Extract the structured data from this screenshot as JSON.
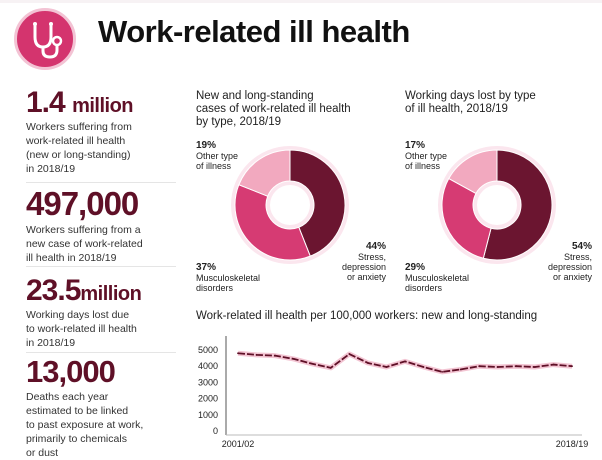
{
  "header": {
    "title": "Work-related ill health",
    "icon": "stethoscope-icon",
    "accent": "#d4346e"
  },
  "stats": [
    {
      "value": "1.4",
      "unit": "million",
      "desc": [
        "Workers suffering from",
        "work-related ill health",
        "(new or long-standing)",
        "in 2018/19"
      ]
    },
    {
      "value": "497,000",
      "unit": "",
      "desc": [
        "Workers suffering from a",
        "new case of work-related",
        "ill health in 2018/19"
      ]
    },
    {
      "value": "23.5",
      "unit": "million",
      "desc": [
        "Working days lost due",
        "to work-related ill health",
        "in 2018/19"
      ]
    },
    {
      "value": "13,000",
      "unit": "",
      "desc": [
        "Deaths each year",
        "estimated to be linked",
        "to past exposure at work,",
        "primarily to chemicals",
        "or dust"
      ]
    }
  ],
  "chart_data": [
    {
      "type": "pie",
      "title": [
        "New and long-standing",
        "cases of work-related ill health",
        "by type, 2018/19"
      ],
      "slices": [
        {
          "label": [
            "Stress,",
            "depression",
            "or anxiety"
          ],
          "value": 44,
          "pct": "44%",
          "color": "#6b1530"
        },
        {
          "label": [
            "Musculoskeletal",
            "disorders"
          ],
          "value": 37,
          "pct": "37%",
          "color": "#d63b73"
        },
        {
          "label": [
            "Other type",
            "of illness"
          ],
          "value": 19,
          "pct": "19%",
          "color": "#f2a9bf"
        }
      ]
    },
    {
      "type": "pie",
      "title": [
        "Working days lost by type",
        "of ill health, 2018/19"
      ],
      "slices": [
        {
          "label": [
            "Stress,",
            "depression",
            "or anxiety"
          ],
          "value": 54,
          "pct": "54%",
          "color": "#6b1530"
        },
        {
          "label": [
            "Musculoskeletal",
            "disorders"
          ],
          "value": 29,
          "pct": "29%",
          "color": "#d63b73"
        },
        {
          "label": [
            "Other type",
            "of illness"
          ],
          "value": 17,
          "pct": "17%",
          "color": "#f2a9bf"
        }
      ]
    },
    {
      "type": "line",
      "title": "Work-related ill health per 100,000 workers: new and long-standing",
      "x_labels": [
        "2001/02",
        "2018/19"
      ],
      "yticks": [
        "5000",
        "4000",
        "3000",
        "2000",
        "1000",
        "0"
      ],
      "ylim": [
        0,
        5000
      ],
      "series": [
        {
          "values": [
            4800,
            4700,
            4650,
            4450,
            4150,
            3900,
            4750,
            4200,
            3950,
            4300,
            3950,
            3650,
            3800,
            4000,
            3950,
            4000,
            3950,
            4100,
            4000
          ]
        }
      ],
      "color": "#5f1027"
    }
  ]
}
